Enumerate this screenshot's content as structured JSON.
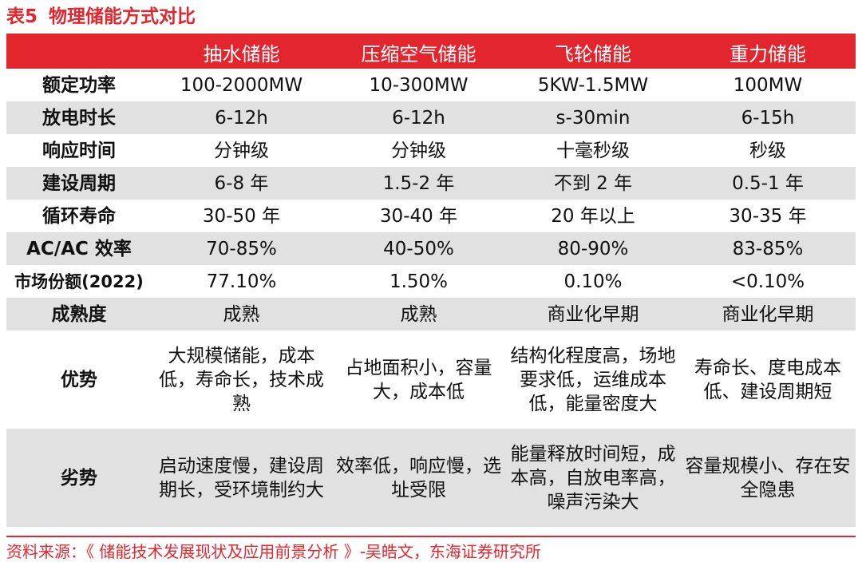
{
  "title": {
    "number": "表5",
    "text": "物理储能方式对比"
  },
  "table": {
    "headers": [
      "",
      "抽水储能",
      "压缩空气储能",
      "飞轮储能",
      "重力储能"
    ],
    "rows": [
      {
        "label": "额定功率",
        "cells": [
          "100-2000MW",
          "10-300MW",
          "5KW-1.5MW",
          "100MW"
        ]
      },
      {
        "label": "放电时长",
        "cells": [
          "6-12h",
          "6-12h",
          "s-30min",
          "6-15h"
        ]
      },
      {
        "label": "响应时间",
        "cells": [
          "分钟级",
          "分钟级",
          "十毫秒级",
          "秒级"
        ]
      },
      {
        "label": "建设周期",
        "cells": [
          "6-8 年",
          "1.5-2 年",
          "不到 2 年",
          "0.5-1 年"
        ]
      },
      {
        "label": "循环寿命",
        "cells": [
          "30-50 年",
          "30-40 年",
          "20 年以上",
          "30-35 年"
        ]
      },
      {
        "label": "AC/AC 效率",
        "cells": [
          "70-85%",
          "40-50%",
          "80-90%",
          "83-85%"
        ]
      },
      {
        "label": "市场份额(2022)",
        "cells": [
          "77.10%",
          "1.50%",
          "0.10%",
          "<0.10%"
        ]
      },
      {
        "label": "成熟度",
        "cells": [
          "成熟",
          "成熟",
          "商业化早期",
          "商业化早期"
        ]
      },
      {
        "label": "优势",
        "cells": [
          "大规模储能，成本低，寿命长，技术成熟",
          "占地面积小，容量大，成本低",
          "结构化程度高，场地要求低，运维成本低，能量密度大",
          "寿命长、度电成本低、建设周期短"
        ]
      },
      {
        "label": "劣势",
        "cells": [
          "启动速度慢，建设周期长，受环境制约大",
          "效率低，响应慢，选址受限",
          "能量释放时间短，成本高，自放电率高，噪声污染大",
          "容量规模小、存在安全隐患"
        ]
      }
    ]
  },
  "source": "资料来源：《 储能技术发展现状及应用前景分析 》-吴皓文，东海证券研究所",
  "colors": {
    "accent": "#e3262e",
    "stripe": "#e1e1e1"
  }
}
